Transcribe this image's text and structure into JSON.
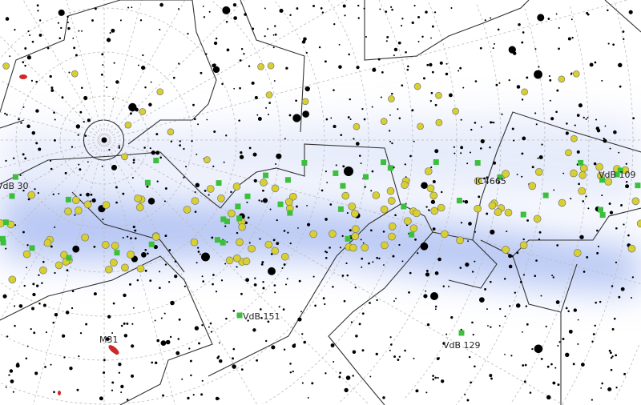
{
  "labels": [
    {
      "text": "VdB 30",
      "name": "label-vdb-30"
    },
    {
      "text": "IC4665",
      "name": "label-ic4665"
    },
    {
      "text": "VdB 109",
      "name": "label-vdb-109"
    },
    {
      "text": "VdB 151",
      "name": "label-vdb-151"
    },
    {
      "text": "M31",
      "name": "label-m31"
    },
    {
      "text": "VdB 129",
      "name": "label-vdb-129"
    }
  ],
  "colors": {
    "milky_way": "#9fb4f0",
    "open_cluster": "#d8d030",
    "nebula": "#3cbf3c",
    "galaxy": "#d02828",
    "star": "#000000",
    "grid": "#bbbbbb",
    "boundary": "#333333"
  }
}
